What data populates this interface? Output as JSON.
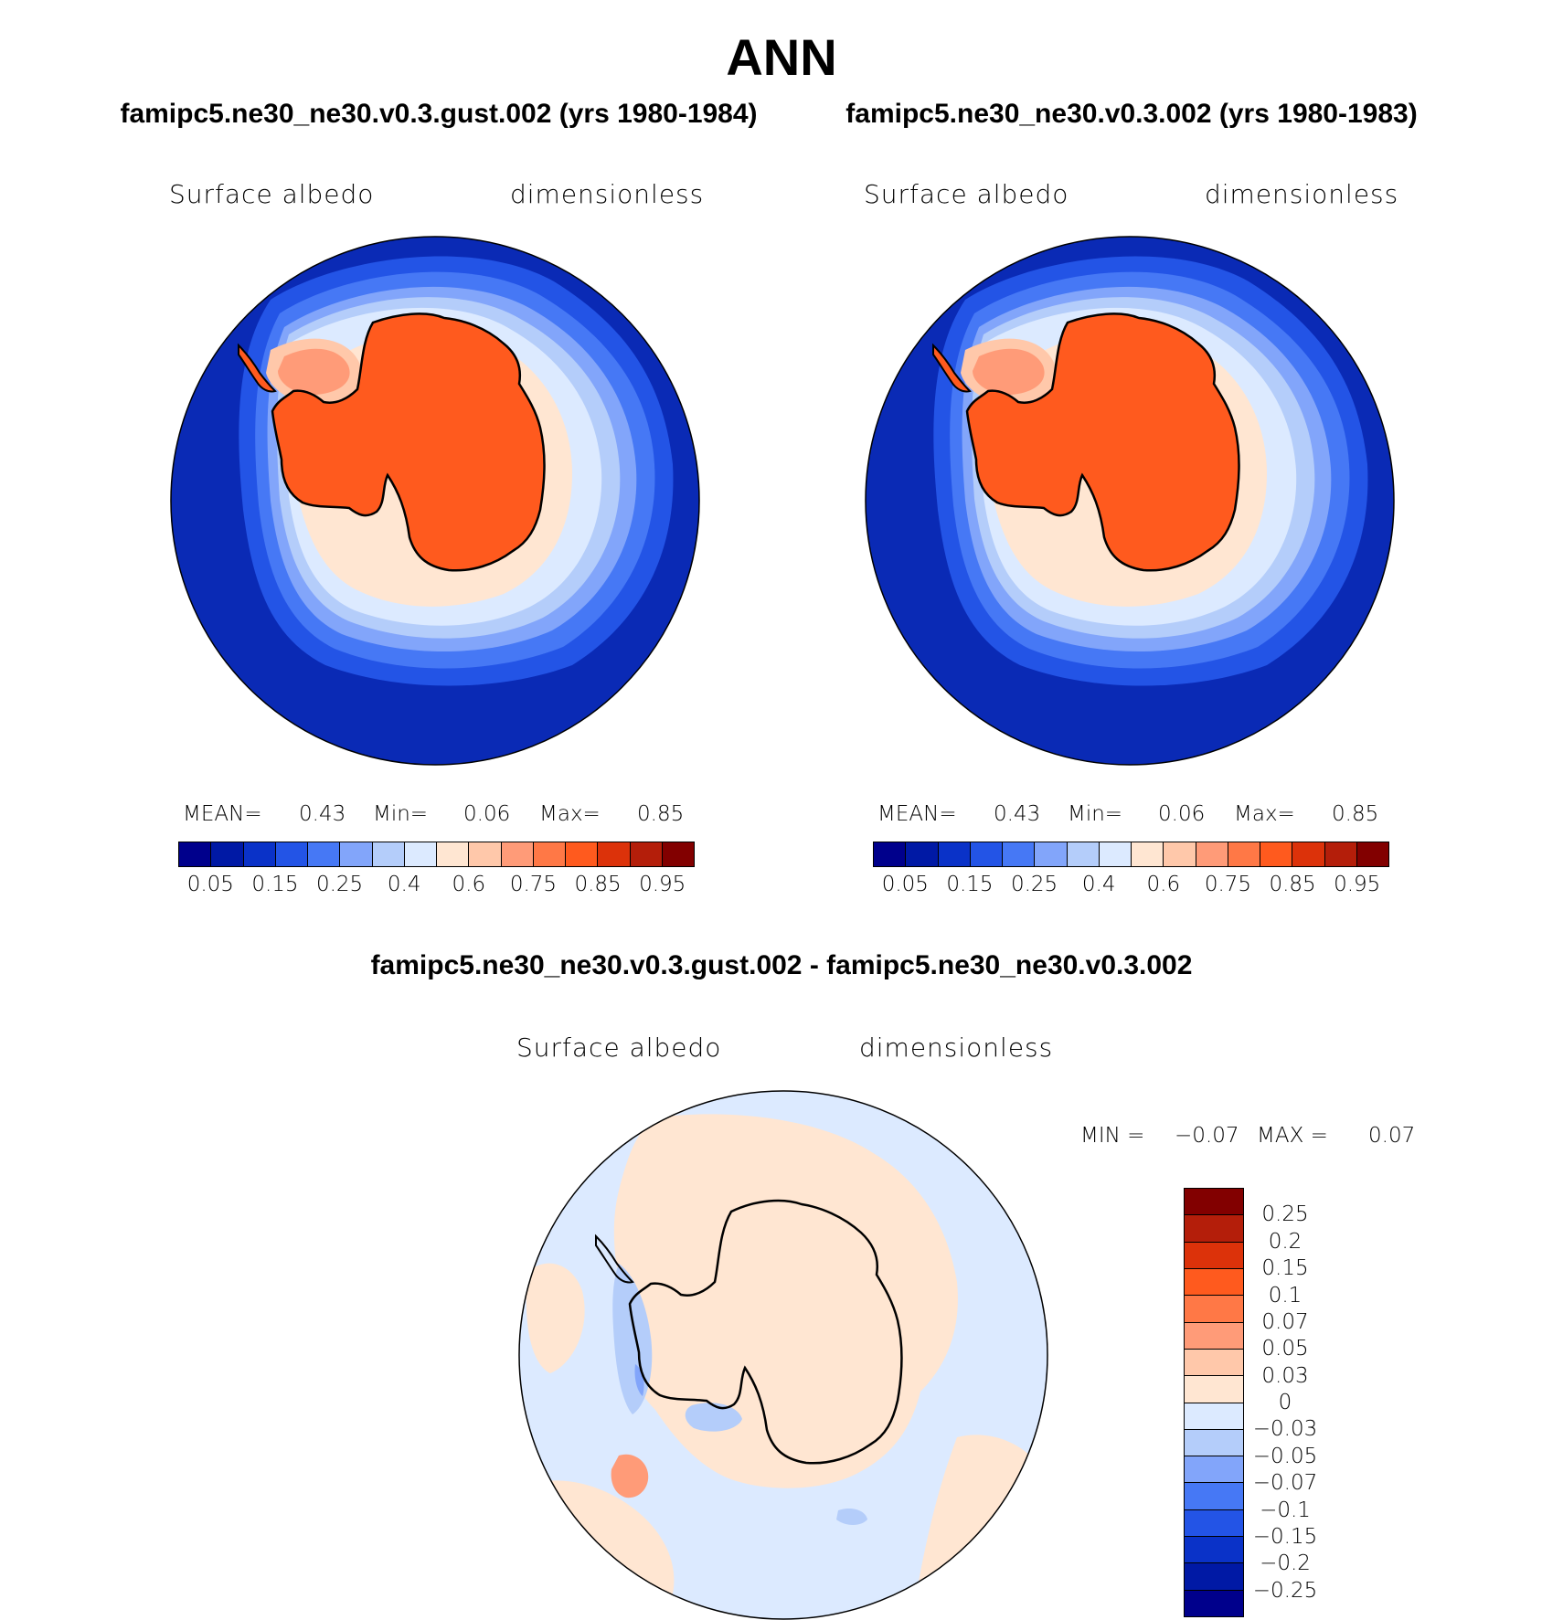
{
  "figure": {
    "title": "ANN",
    "season": "ANN"
  },
  "panels": [
    {
      "case_title": "famipc5.ne30_ne30.v0.3.gust.002 (yrs 1980-1984)",
      "variable": "Surface albedo",
      "units": "dimensionless",
      "stats": {
        "mean_label": "MEAN=",
        "mean": "0.43",
        "min_label": "Min=",
        "min": "0.06",
        "max_label": "Max=",
        "max": "0.85"
      }
    },
    {
      "case_title": "famipc5.ne30_ne30.v0.3.002 (yrs 1980-1983)",
      "variable": "Surface albedo",
      "units": "dimensionless",
      "stats": {
        "mean_label": "MEAN=",
        "mean": "0.43",
        "min_label": "Min=",
        "min": "0.06",
        "max_label": "Max=",
        "max": "0.85"
      }
    }
  ],
  "diff_panel": {
    "case_title": "famipc5.ne30_ne30.v0.3.gust.002 - famipc5.ne30_ne30.v0.3.002",
    "variable": "Surface albedo",
    "units": "dimensionless",
    "stats": {
      "min_label": "MIN =",
      "min": "−0.07",
      "max_label": "MAX =",
      "max": "0.07"
    }
  },
  "colorbar_main": {
    "colors": [
      "#00008c",
      "#0019a5",
      "#0a32c8",
      "#2354e6",
      "#4678f5",
      "#82a5fa",
      "#b4cdfa",
      "#dceaff",
      "#ffe6d2",
      "#ffc8aa",
      "#ff9b78",
      "#ff7846",
      "#ff5a1e",
      "#dc320a",
      "#b41e0a",
      "#820000"
    ],
    "tick_labels": [
      "0.05",
      "0.15",
      "0.25",
      "0.4",
      "0.6",
      "0.75",
      "0.85",
      "0.95"
    ]
  },
  "colorbar_diff": {
    "colors": [
      "#820000",
      "#b41e0a",
      "#dc320a",
      "#ff5a1e",
      "#ff7846",
      "#ff9b78",
      "#ffc8aa",
      "#ffe6d2",
      "#dceaff",
      "#b4cdfa",
      "#82a5fa",
      "#4678f5",
      "#2354e6",
      "#0a32c8",
      "#0019a5",
      "#00008c"
    ],
    "tick_labels": [
      "0.25",
      "0.2",
      "0.15",
      "0.1",
      "0.07",
      "0.05",
      "0.03",
      "0",
      "−0.03",
      "−0.05",
      "−0.07",
      "−0.1",
      "−0.15",
      "−0.2",
      "−0.25"
    ]
  },
  "map_colors": {
    "ocean_deep": "#0a2ab5",
    "ocean_mid": "#2354e6",
    "ocean_light": "#4678f5",
    "ocean_pale": "#82a5fa",
    "sea_ice_light": "#b4cdfa",
    "sea_ice_pale": "#dceaff",
    "sea_ice_peach": "#ffe6d2",
    "sea_ice_salmon": "#ffc8aa",
    "sea_ice_orange": "#ff9b78",
    "continent": "#ff5a1e",
    "diff_background": "#dceaff",
    "diff_positive": "#ffe6d2",
    "diff_positive_strong": "#ff9b78",
    "diff_negative": "#b4cdfa",
    "diff_negative_strong": "#82a5fa"
  }
}
